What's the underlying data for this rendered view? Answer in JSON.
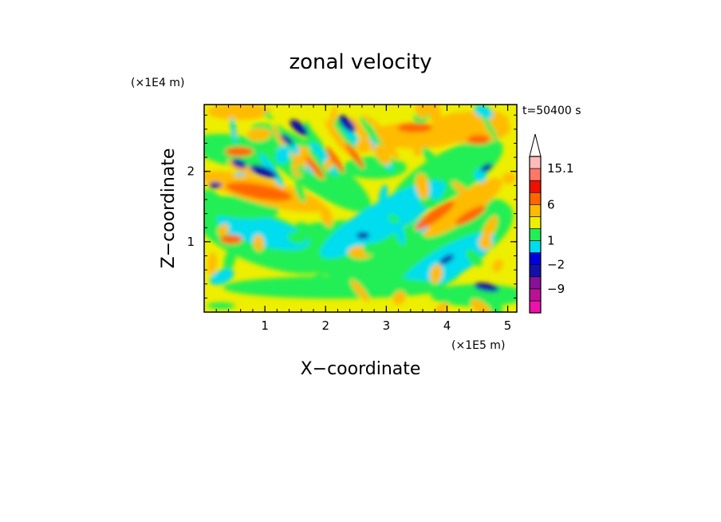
{
  "chart_data": {
    "type": "heatmap",
    "title": "zonal velocity",
    "xlabel": "X−coordinate",
    "ylabel": "Z−coordinate",
    "x_unit": "(×1E5 m)",
    "y_unit": "(×1E4 m)",
    "time_label": "t=50400 s",
    "xlim": [
      0,
      5.15
    ],
    "ylim": [
      0,
      2.95
    ],
    "x_ticks": [
      1,
      2,
      3,
      4,
      5
    ],
    "x_tick_labels": [
      "1",
      "2",
      "3",
      "4",
      "5"
    ],
    "y_ticks": [
      1,
      2
    ],
    "y_tick_labels": [
      "1",
      "2"
    ],
    "colorbar": {
      "levels": [
        -15,
        -12,
        -9,
        -6,
        -2,
        -1,
        1,
        2,
        3,
        6,
        9,
        12,
        15.1
      ],
      "labeled_values": [
        "15.1",
        "6",
        "1",
        "−2",
        "−9"
      ],
      "colors": [
        "#ee11aa",
        "#bb1199",
        "#881199",
        "#1111aa",
        "#0000dd",
        "#00ddee",
        "#22ee55",
        "#eeee00",
        "#ffbb00",
        "#ff6600",
        "#ee1100",
        "#ff7766",
        "#ffbbbb"
      ],
      "extend": "max"
    },
    "colors": {
      "background_field": "#eeee00",
      "positive_light": "#ffbb00",
      "positive_strong": "#ff6600",
      "negative_light": "#22ee55",
      "negative_mid": "#00ddee",
      "negative_strong": "#1111aa"
    }
  }
}
